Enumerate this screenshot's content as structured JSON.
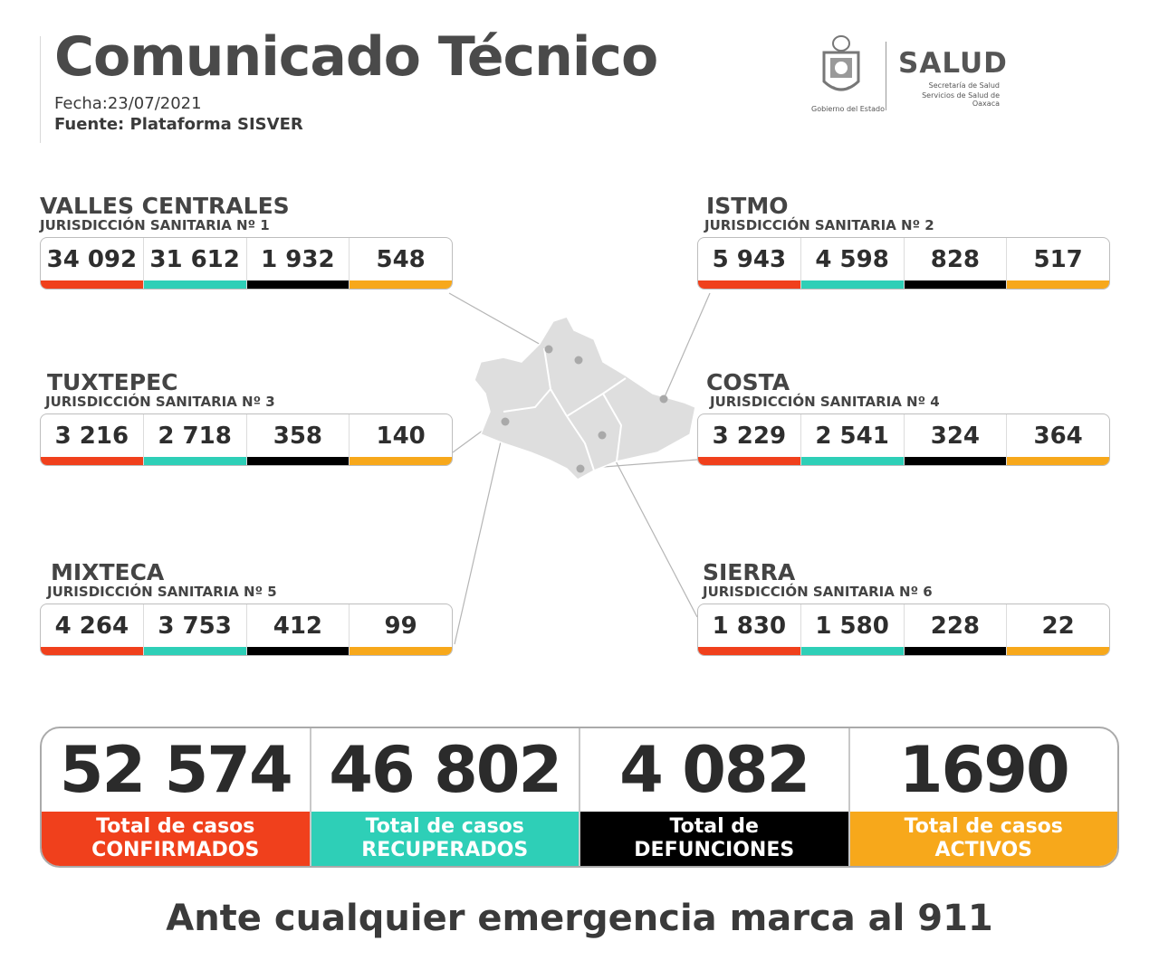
{
  "header": {
    "title": "Comunicado Técnico",
    "fecha": "Fecha:23/07/2021",
    "fuente": "Fuente: Plataforma SISVER"
  },
  "logo": {
    "gobierno": "Gobierno del Estado",
    "salud": "SALUD",
    "sub1": "Secretaría de Salud",
    "sub2": "Servicios de Salud de Oaxaca"
  },
  "colors": {
    "confirmados": "#f0401c",
    "recuperados": "#2ecfb7",
    "defunciones": "#000000",
    "activos": "#f7a81b"
  },
  "regions": [
    {
      "name": "VALLES CENTRALES",
      "jur": "JURISDICCIÓN SANITARIA Nº 1",
      "values": [
        "34 092",
        "31 612",
        "1 932",
        "548"
      ]
    },
    {
      "name": "ISTMO",
      "jur": "JURISDICCIÓN SANITARIA Nº 2",
      "values": [
        "5 943",
        "4 598",
        "828",
        "517"
      ]
    },
    {
      "name": "TUXTEPEC",
      "jur": "JURISDICCIÓN SANITARIA Nº 3",
      "values": [
        "3 216",
        "2 718",
        "358",
        "140"
      ]
    },
    {
      "name": "COSTA",
      "jur": "JURISDICCIÓN SANITARIA Nº 4",
      "values": [
        "3 229",
        "2 541",
        "324",
        "364"
      ]
    },
    {
      "name": "MIXTECA",
      "jur": "JURISDICCIÓN SANITARIA Nº 5",
      "values": [
        "4 264",
        "3 753",
        "412",
        "99"
      ]
    },
    {
      "name": "SIERRA",
      "jur": "JURISDICCIÓN SANITARIA Nº 6",
      "values": [
        "1 830",
        "1 580",
        "228",
        "22"
      ]
    }
  ],
  "totals": [
    {
      "value": "52 574",
      "line1": "Total de casos",
      "line2": "CONFIRMADOS"
    },
    {
      "value": "46 802",
      "line1": "Total de casos",
      "line2": "RECUPERADOS"
    },
    {
      "value": "4 082",
      "line1": "Total de",
      "line2": "DEFUNCIONES"
    },
    {
      "value": "1690",
      "line1": "Total de casos",
      "line2": "ACTIVOS"
    }
  ],
  "footer": "Ante cualquier emergencia marca al 911"
}
